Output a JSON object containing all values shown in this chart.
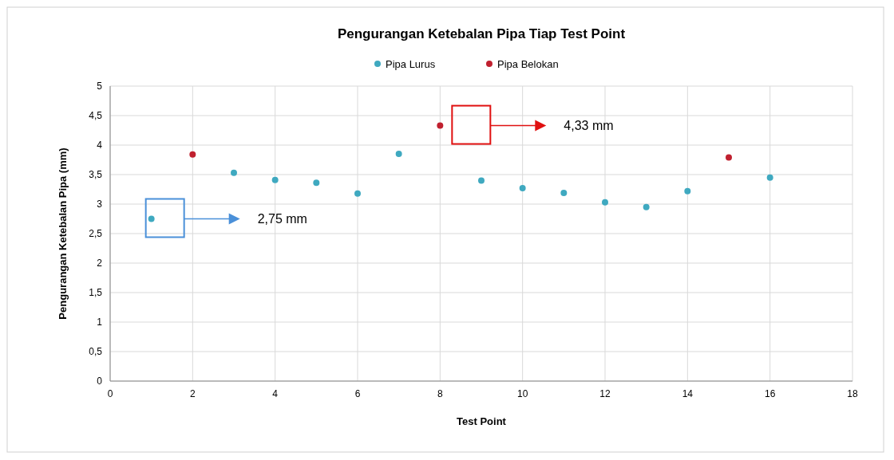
{
  "chart_data": {
    "type": "scatter",
    "title": "Pengurangan Ketebalan Pipa Tiap Test Point",
    "xlabel": "Test Point",
    "ylabel": "Pengurangan Ketebalan Pipa (mm)",
    "xlim": [
      0,
      18
    ],
    "xticks": [
      0,
      2,
      4,
      6,
      8,
      10,
      12,
      14,
      16,
      18
    ],
    "ylim": [
      0,
      5
    ],
    "yticks": [
      0,
      {
        "value": 0.5,
        "label": "0,5"
      },
      1,
      {
        "value": 1.5,
        "label": "1,5"
      },
      2,
      {
        "value": 2.5,
        "label": "2,5"
      },
      3,
      {
        "value": 3.5,
        "label": "3,5"
      },
      4,
      {
        "value": 4.5,
        "label": "4,5"
      },
      5
    ],
    "grid": true,
    "legend": "top",
    "marker": "circle",
    "series": [
      {
        "name": "Pipa Lurus",
        "color": "#3fa9c0",
        "x": [
          1,
          3,
          4,
          5,
          6,
          7,
          9,
          10,
          11,
          12,
          13,
          14,
          16
        ],
        "values": [
          2.75,
          3.53,
          3.41,
          3.36,
          3.18,
          3.85,
          3.4,
          3.27,
          3.19,
          3.03,
          2.95,
          3.22,
          3.45
        ]
      },
      {
        "name": "Pipa Belokan",
        "color": "#c0202f",
        "x": [
          2,
          8,
          15
        ],
        "values": [
          3.84,
          4.33,
          3.79
        ]
      }
    ],
    "annotations": [
      "4,33 mm",
      "2,75 mm"
    ]
  }
}
